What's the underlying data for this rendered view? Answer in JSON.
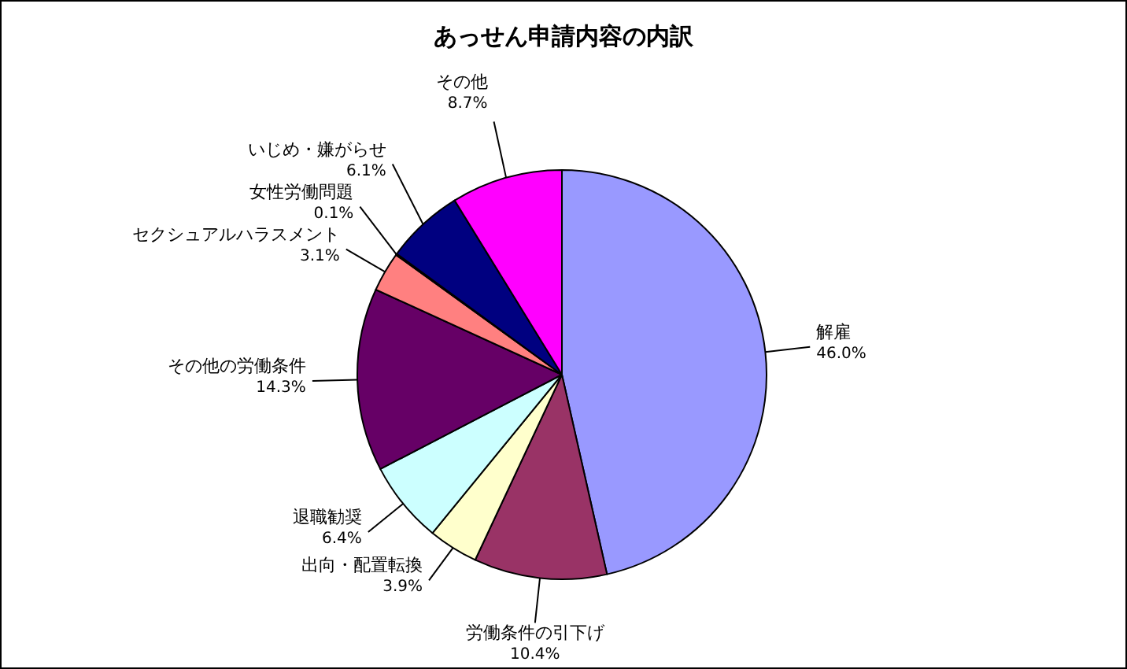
{
  "chart_data": {
    "type": "pie",
    "title": "あっせん申請内容の内訳",
    "categories": [
      "解雇",
      "労働条件の引下げ",
      "出向・配置転換",
      "退職勧奨",
      "その他の労働条件",
      "セクシュアルハラスメント",
      "女性労働問題",
      "いじめ・嫌がらせ",
      "その他"
    ],
    "values": [
      46.0,
      10.4,
      3.9,
      6.4,
      14.3,
      3.1,
      0.1,
      6.1,
      8.7
    ],
    "value_labels": [
      "46.0%",
      "10.4%",
      "3.9%",
      "6.4%",
      "14.3%",
      "3.1%",
      "0.1%",
      "6.1%",
      "8.7%"
    ],
    "colors": [
      "#9999ff",
      "#993366",
      "#ffffcc",
      "#ccffff",
      "#660066",
      "#ff8080",
      "#ccccff",
      "#000080",
      "#ff00ff"
    ],
    "legend": false
  }
}
